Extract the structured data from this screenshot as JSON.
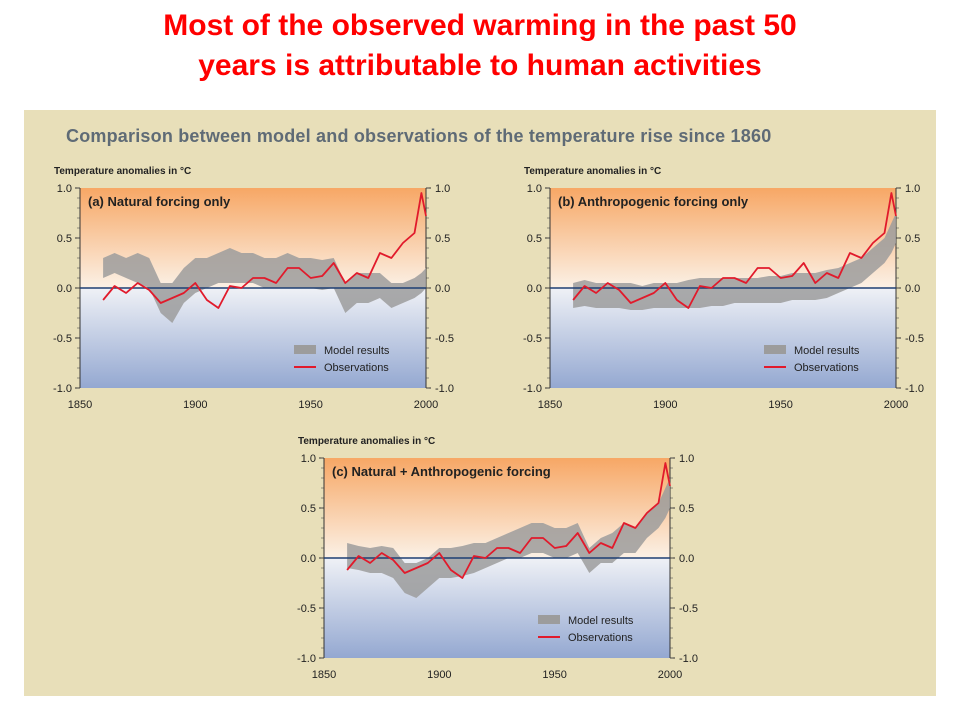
{
  "headline_line1": "Most of the observed warming in the past 50",
  "headline_line2": "years is attributable to human activities",
  "panel_title": "Comparison between model and observations of the temperature rise since 1860",
  "colors": {
    "headline": "#ff0000",
    "observations": "#e11a2b",
    "model_band": "#9c9c9c",
    "zero_line": "#1e3f73"
  },
  "chart_data": [
    {
      "type": "line",
      "title": "(a) Natural forcing only",
      "ylabel": "Temperature anomalies in °C",
      "xlim": [
        1850,
        2000
      ],
      "ylim": [
        -1.0,
        1.0
      ],
      "x_ticks": [
        "1850",
        "1900",
        "1950",
        "2000"
      ],
      "y_ticks": [
        "1.0",
        "0.5",
        "0.0",
        "-0.5",
        "-1.0"
      ],
      "legend": [
        "Model results",
        "Observations"
      ],
      "legend_position": "bottom-right",
      "x": [
        1860,
        1865,
        1870,
        1875,
        1880,
        1885,
        1890,
        1895,
        1900,
        1905,
        1910,
        1915,
        1920,
        1925,
        1930,
        1935,
        1940,
        1945,
        1950,
        1955,
        1960,
        1965,
        1970,
        1975,
        1980,
        1985,
        1990,
        1995,
        1998,
        2000
      ],
      "series": [
        {
          "name": "Observations",
          "values": [
            -0.12,
            0.02,
            -0.05,
            0.05,
            -0.02,
            -0.15,
            -0.1,
            -0.05,
            0.05,
            -0.12,
            -0.2,
            0.02,
            0.0,
            0.1,
            0.1,
            0.05,
            0.2,
            0.2,
            0.1,
            0.12,
            0.25,
            0.05,
            0.15,
            0.1,
            0.35,
            0.3,
            0.45,
            0.55,
            0.95,
            0.72
          ]
        },
        {
          "name": "Model results",
          "upper": [
            0.3,
            0.35,
            0.3,
            0.35,
            0.3,
            0.05,
            0.05,
            0.2,
            0.3,
            0.3,
            0.35,
            0.4,
            0.35,
            0.35,
            0.3,
            0.3,
            0.35,
            0.3,
            0.3,
            0.28,
            0.3,
            0.05,
            0.15,
            0.15,
            0.15,
            0.05,
            0.05,
            0.1,
            0.15,
            0.2
          ],
          "lower": [
            0.1,
            0.15,
            0.1,
            0.05,
            0.0,
            -0.25,
            -0.35,
            -0.15,
            -0.05,
            0.0,
            0.05,
            0.05,
            0.05,
            0.05,
            0.0,
            0.0,
            0.0,
            0.0,
            0.0,
            -0.02,
            0.0,
            -0.25,
            -0.15,
            -0.15,
            -0.1,
            -0.2,
            -0.15,
            -0.1,
            -0.05,
            0.0
          ]
        }
      ]
    },
    {
      "type": "line",
      "title": "(b) Anthropogenic forcing only",
      "ylabel": "Temperature anomalies in °C",
      "xlim": [
        1850,
        2000
      ],
      "ylim": [
        -1.0,
        1.0
      ],
      "x_ticks": [
        "1850",
        "1900",
        "1950",
        "2000"
      ],
      "y_ticks": [
        "1.0",
        "0.5",
        "0.0",
        "-0.5",
        "-1.0"
      ],
      "legend": [
        "Model results",
        "Observations"
      ],
      "legend_position": "bottom-right",
      "x": [
        1860,
        1865,
        1870,
        1875,
        1880,
        1885,
        1890,
        1895,
        1900,
        1905,
        1910,
        1915,
        1920,
        1925,
        1930,
        1935,
        1940,
        1945,
        1950,
        1955,
        1960,
        1965,
        1970,
        1975,
        1980,
        1985,
        1990,
        1995,
        1998,
        2000
      ],
      "series": [
        {
          "name": "Observations",
          "values": [
            -0.12,
            0.02,
            -0.05,
            0.05,
            -0.02,
            -0.15,
            -0.1,
            -0.05,
            0.05,
            -0.12,
            -0.2,
            0.02,
            0.0,
            0.1,
            0.1,
            0.05,
            0.2,
            0.2,
            0.1,
            0.12,
            0.25,
            0.05,
            0.15,
            0.1,
            0.35,
            0.3,
            0.45,
            0.55,
            0.95,
            0.72
          ]
        },
        {
          "name": "Model results",
          "upper": [
            0.05,
            0.08,
            0.05,
            0.05,
            0.05,
            0.05,
            0.02,
            0.05,
            0.05,
            0.05,
            0.08,
            0.1,
            0.1,
            0.1,
            0.1,
            0.1,
            0.1,
            0.12,
            0.12,
            0.15,
            0.15,
            0.15,
            0.18,
            0.2,
            0.25,
            0.3,
            0.4,
            0.5,
            0.65,
            0.75
          ],
          "lower": [
            -0.2,
            -0.18,
            -0.2,
            -0.2,
            -0.2,
            -0.22,
            -0.22,
            -0.2,
            -0.2,
            -0.2,
            -0.2,
            -0.2,
            -0.18,
            -0.18,
            -0.15,
            -0.15,
            -0.15,
            -0.15,
            -0.15,
            -0.12,
            -0.12,
            -0.12,
            -0.1,
            -0.05,
            0.0,
            0.05,
            0.15,
            0.25,
            0.35,
            0.45
          ]
        }
      ]
    },
    {
      "type": "line",
      "title": "(c) Natural + Anthropogenic forcing",
      "ylabel": "Temperature anomalies in °C",
      "xlim": [
        1850,
        2000
      ],
      "ylim": [
        -1.0,
        1.0
      ],
      "x_ticks": [
        "1850",
        "1900",
        "1950",
        "2000"
      ],
      "y_ticks": [
        "1.0",
        "0.5",
        "0.0",
        "-0.5",
        "-1.0"
      ],
      "legend": [
        "Model results",
        "Observations"
      ],
      "legend_position": "bottom-right",
      "x": [
        1860,
        1865,
        1870,
        1875,
        1880,
        1885,
        1890,
        1895,
        1900,
        1905,
        1910,
        1915,
        1920,
        1925,
        1930,
        1935,
        1940,
        1945,
        1950,
        1955,
        1960,
        1965,
        1970,
        1975,
        1980,
        1985,
        1990,
        1995,
        1998,
        2000
      ],
      "series": [
        {
          "name": "Observations",
          "values": [
            -0.12,
            0.02,
            -0.05,
            0.05,
            -0.02,
            -0.15,
            -0.1,
            -0.05,
            0.05,
            -0.12,
            -0.2,
            0.02,
            0.0,
            0.1,
            0.1,
            0.05,
            0.2,
            0.2,
            0.1,
            0.12,
            0.25,
            0.05,
            0.15,
            0.1,
            0.35,
            0.3,
            0.45,
            0.55,
            0.95,
            0.72
          ]
        },
        {
          "name": "Model results",
          "upper": [
            0.15,
            0.12,
            0.1,
            0.12,
            0.1,
            -0.05,
            -0.05,
            0.0,
            0.1,
            0.1,
            0.12,
            0.15,
            0.15,
            0.2,
            0.25,
            0.3,
            0.35,
            0.35,
            0.3,
            0.3,
            0.35,
            0.1,
            0.2,
            0.25,
            0.35,
            0.3,
            0.45,
            0.55,
            0.7,
            0.8
          ],
          "lower": [
            -0.1,
            -0.12,
            -0.15,
            -0.15,
            -0.2,
            -0.35,
            -0.4,
            -0.3,
            -0.2,
            -0.2,
            -0.18,
            -0.15,
            -0.1,
            -0.05,
            0.0,
            0.0,
            0.05,
            0.05,
            0.0,
            0.0,
            0.05,
            -0.15,
            -0.05,
            -0.05,
            0.05,
            0.05,
            0.2,
            0.3,
            0.4,
            0.5
          ]
        }
      ]
    }
  ]
}
